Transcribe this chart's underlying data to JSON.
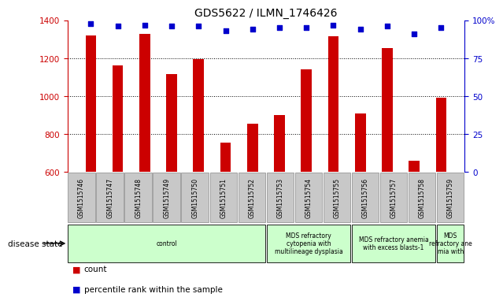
{
  "title": "GDS5622 / ILMN_1746426",
  "samples": [
    "GSM1515746",
    "GSM1515747",
    "GSM1515748",
    "GSM1515749",
    "GSM1515750",
    "GSM1515751",
    "GSM1515752",
    "GSM1515753",
    "GSM1515754",
    "GSM1515755",
    "GSM1515756",
    "GSM1515757",
    "GSM1515758",
    "GSM1515759"
  ],
  "counts": [
    1320,
    1160,
    1330,
    1115,
    1195,
    755,
    855,
    900,
    1140,
    1315,
    910,
    1255,
    660,
    990
  ],
  "percentile_ranks": [
    98,
    96,
    97,
    96,
    96,
    93,
    94,
    95,
    95,
    97,
    94,
    96,
    91,
    95
  ],
  "ylim_left": [
    600,
    1400
  ],
  "ylim_right": [
    0,
    100
  ],
  "yticks_left": [
    600,
    800,
    1000,
    1200,
    1400
  ],
  "yticks_right": [
    0,
    25,
    50,
    75,
    100
  ],
  "bar_color": "#cc0000",
  "dot_color": "#0000cc",
  "bar_width": 0.4,
  "group_defs": [
    {
      "start": 0,
      "end": 7,
      "label": "control",
      "color": "#ccffcc"
    },
    {
      "start": 7,
      "end": 10,
      "label": "MDS refractory\ncytopenia with\nmultilineage dysplasia",
      "color": "#ccffcc"
    },
    {
      "start": 10,
      "end": 13,
      "label": "MDS refractory anemia\nwith excess blasts-1",
      "color": "#ccffcc"
    },
    {
      "start": 13,
      "end": 14,
      "label": "MDS\nrefractory ane\nmia with",
      "color": "#ccffcc"
    }
  ],
  "disease_state_label": "disease state",
  "legend_count_label": "count",
  "legend_pct_label": "percentile rank within the sample",
  "tick_bg_color": "#c8c8c8",
  "tick_border_color": "#888888"
}
